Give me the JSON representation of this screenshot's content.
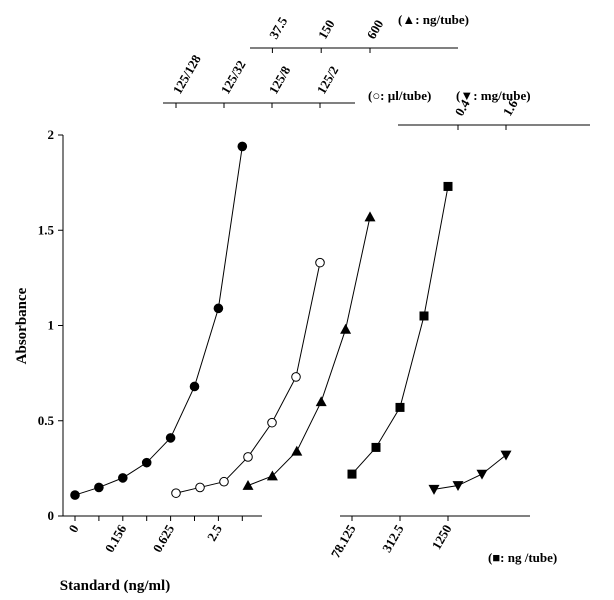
{
  "chart_data": {
    "type": "line",
    "y_label": "Absorbance",
    "ylim": [
      0,
      2
    ],
    "yticks": [
      0,
      0.5,
      1,
      1.5,
      2
    ],
    "x_axes": [
      {
        "label": "Standard (ng/ml)",
        "categories": [
          "0",
          null,
          "0.156",
          null,
          "0.625",
          null,
          "2.5",
          null
        ]
      },
      {
        "label": "(○: µl/tube)",
        "categories": [
          "125/128",
          null,
          "125/32",
          null,
          "125/8",
          null,
          "125/2"
        ]
      },
      {
        "label": "(▲: ng/tube)",
        "categories": [
          null,
          "37.5",
          null,
          "150",
          null,
          "600"
        ]
      },
      {
        "label": "(■: ng /tube)",
        "categories": [
          "78.125",
          null,
          "312.5",
          null,
          "1250"
        ]
      },
      {
        "label": "(▼: mg/tube)",
        "categories": [
          null,
          "0.4",
          null,
          "1.6"
        ]
      }
    ],
    "series": [
      {
        "marker": "filled-circle",
        "x_axis": 0,
        "color": "#000000",
        "values": [
          0.11,
          0.15,
          0.2,
          0.28,
          0.41,
          0.68,
          1.09,
          1.94
        ]
      },
      {
        "marker": "open-circle",
        "x_axis": 1,
        "color": "#000000",
        "values": [
          0.12,
          0.15,
          0.18,
          0.31,
          0.49,
          0.73,
          1.33
        ]
      },
      {
        "marker": "triangle-up",
        "x_axis": 2,
        "color": "#000000",
        "values": [
          0.16,
          0.21,
          0.34,
          0.6,
          0.98,
          1.57
        ]
      },
      {
        "marker": "square",
        "x_axis": 3,
        "color": "#000000",
        "values": [
          0.22,
          0.36,
          0.57,
          1.05,
          1.73
        ]
      },
      {
        "marker": "triangle-down",
        "x_axis": 4,
        "color": "#000000",
        "values": [
          0.14,
          0.16,
          0.22,
          0.32
        ]
      }
    ]
  }
}
